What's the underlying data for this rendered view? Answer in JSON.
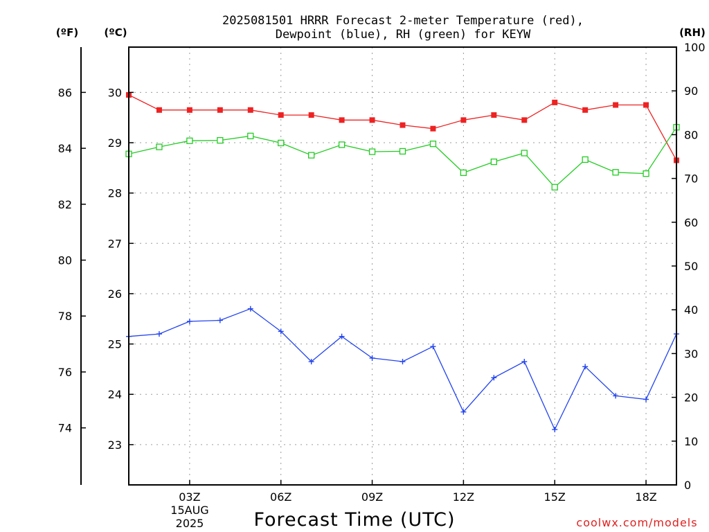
{
  "chart_data": {
    "type": "line",
    "title": "2025081501 HRRR Forecast 2-meter Temperature (red),",
    "title_line2": "Dewpoint (blue), RH (green) for KEYW",
    "xlabel": "Forecast Time (UTC)",
    "left_unit_f": "(ºF)",
    "left_unit_c": "(ºC)",
    "right_unit": "(RH)",
    "x_hours": [
      1,
      2,
      3,
      4,
      5,
      6,
      7,
      8,
      9,
      10,
      11,
      12,
      13,
      14,
      15,
      16,
      17,
      18,
      19
    ],
    "xlim": [
      1,
      19
    ],
    "x_ticks": [
      {
        "hour": 3,
        "label": "03Z"
      },
      {
        "hour": 6,
        "label": "06Z"
      },
      {
        "hour": 9,
        "label": "09Z"
      },
      {
        "hour": 12,
        "label": "12Z"
      },
      {
        "hour": 15,
        "label": "15Z"
      },
      {
        "hour": 18,
        "label": "18Z"
      }
    ],
    "date_label": [
      "15AUG",
      "2025"
    ],
    "temp_c_ylim": [
      22.2,
      30.9
    ],
    "temp_c_ticks": [
      23,
      24,
      25,
      26,
      27,
      28,
      29,
      30
    ],
    "temp_f_ticks": [
      74,
      76,
      78,
      80,
      82,
      84,
      86
    ],
    "rh_ylim": [
      0,
      100
    ],
    "rh_ticks": [
      0,
      10,
      20,
      30,
      40,
      50,
      60,
      70,
      80,
      90,
      100
    ],
    "series": [
      {
        "name": "Temperature",
        "color": "#ee2222",
        "marker": "filled-square",
        "axis": "celsius",
        "values": [
          29.95,
          29.65,
          29.65,
          29.65,
          29.65,
          29.55,
          29.55,
          29.45,
          29.45,
          29.35,
          29.28,
          29.45,
          29.55,
          29.45,
          29.8,
          29.65,
          29.75,
          29.75,
          28.65
        ]
      },
      {
        "name": "Dewpoint",
        "color": "#2244ee",
        "marker": "plus",
        "axis": "celsius",
        "values": [
          25.15,
          25.2,
          25.45,
          25.47,
          25.7,
          25.25,
          24.65,
          25.15,
          24.72,
          24.65,
          24.95,
          23.65,
          24.33,
          24.65,
          23.3,
          24.55,
          23.97,
          23.9,
          25.2
        ]
      },
      {
        "name": "RH",
        "color": "#22cc22",
        "marker": "open-square",
        "axis": "rh",
        "values": [
          75.6,
          77.2,
          78.6,
          78.7,
          79.7,
          78.1,
          75.3,
          77.7,
          76.1,
          76.2,
          77.9,
          71.3,
          73.8,
          75.8,
          68.0,
          74.3,
          71.4,
          71.1,
          81.7
        ]
      }
    ],
    "grid": true,
    "credit": "coolwx.com/models"
  }
}
